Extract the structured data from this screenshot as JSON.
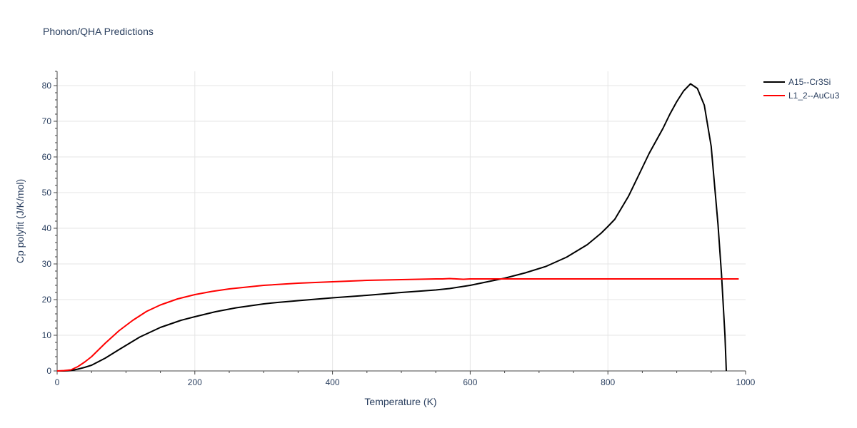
{
  "chart_data": {
    "type": "line",
    "title": "Phonon/QHA Predictions",
    "xlabel": "Temperature (K)",
    "ylabel": "Cp polyfit (J/K/mol)",
    "xlim": [
      0,
      1000
    ],
    "ylim": [
      0,
      84
    ],
    "xticks": [
      0,
      200,
      400,
      600,
      800,
      1000
    ],
    "yticks": [
      0,
      10,
      20,
      30,
      40,
      50,
      60,
      70,
      80
    ],
    "grid": true,
    "legend_position": "top-right",
    "series": [
      {
        "name": "A15--Cr3Si",
        "color": "#000000",
        "x": [
          0,
          10,
          20,
          30,
          40,
          50,
          70,
          90,
          120,
          150,
          180,
          200,
          230,
          260,
          300,
          320,
          350,
          400,
          450,
          500,
          550,
          570,
          600,
          620,
          650,
          680,
          710,
          740,
          770,
          790,
          800,
          810,
          830,
          845,
          860,
          880,
          890,
          900,
          910,
          920,
          930,
          940,
          950,
          955,
          960,
          965,
          970,
          972
        ],
        "y": [
          0,
          0,
          0.1,
          0.5,
          1.0,
          1.6,
          3.6,
          6.0,
          9.5,
          12.2,
          14.2,
          15.2,
          16.6,
          17.7,
          18.8,
          19.2,
          19.7,
          20.5,
          21.2,
          22.0,
          22.7,
          23.1,
          24.0,
          24.8,
          26.0,
          27.5,
          29.3,
          31.9,
          35.4,
          38.6,
          40.5,
          42.5,
          49.0,
          55.0,
          61.0,
          68.0,
          72.0,
          75.5,
          78.5,
          80.5,
          79.2,
          74.5,
          63.0,
          52.0,
          41.0,
          27.0,
          10.0,
          0.0
        ]
      },
      {
        "name": "L1_2--AuCu3",
        "color": "#ff0000",
        "x": [
          0,
          10,
          20,
          30,
          40,
          50,
          70,
          90,
          110,
          130,
          150,
          175,
          200,
          225,
          250,
          300,
          350,
          400,
          450,
          500,
          550,
          560,
          570,
          580,
          590,
          600,
          650,
          700,
          800,
          900,
          990
        ],
        "y": [
          0,
          0.1,
          0.3,
          1.2,
          2.5,
          4.0,
          7.8,
          11.3,
          14.2,
          16.7,
          18.5,
          20.2,
          21.4,
          22.3,
          23.0,
          24.0,
          24.6,
          25.0,
          25.4,
          25.6,
          25.8,
          25.8,
          25.9,
          25.8,
          25.7,
          25.8,
          25.8,
          25.8,
          25.8,
          25.8,
          25.8
        ]
      }
    ]
  }
}
